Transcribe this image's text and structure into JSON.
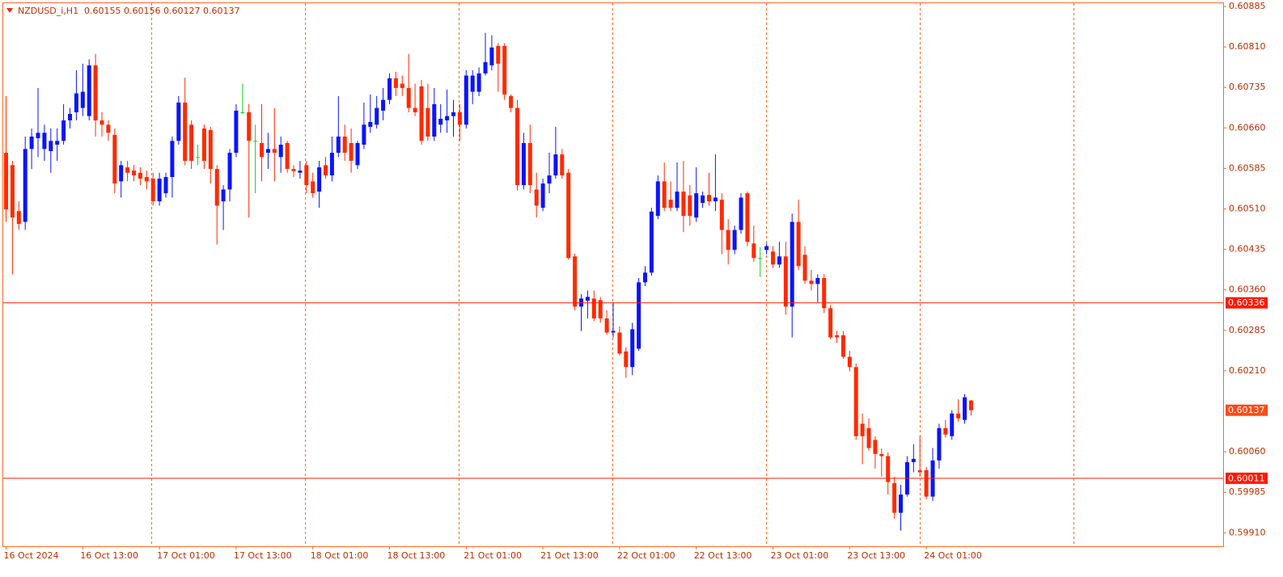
{
  "chart_data": {
    "type": "candlestick",
    "title": "NZDUSD_i,H1  0.60155 0.60156 0.60127 0.60137",
    "up_color": "#0a14ff",
    "down_color": "#ff2a00",
    "doji_color": "#22cc22",
    "ylim": [
      0.59885,
      0.60891
    ],
    "yticks": [
      0.60885,
      {
        "value": 0.6081,
        "label": "0.60810"
      },
      0.60735,
      {
        "value": 0.6066,
        "label": "0.60660"
      },
      0.60585,
      {
        "value": 0.6051,
        "label": "0.60510"
      },
      0.60435,
      {
        "value": 0.6036,
        "label": "0.60360"
      },
      0.60285,
      {
        "value": 0.6021,
        "label": "0.60210"
      },
      {
        "value": 0.6006,
        "label": "0.60060"
      },
      0.59985,
      {
        "value": 0.5991,
        "label": "0.59910"
      }
    ],
    "hlines": [
      {
        "value": 0.60336,
        "label": "0.60336",
        "color": "#ff1a00"
      },
      {
        "value": 0.60011,
        "label": "0.60011",
        "color": "#ff1a00"
      }
    ],
    "current_price": {
      "value": 0.60137,
      "label": "0.60137",
      "color": "#ff4a1a"
    },
    "categories": [
      "16 Oct 2024",
      null,
      null,
      null,
      null,
      null,
      null,
      null,
      null,
      null,
      null,
      null,
      "16 Oct 13:00",
      null,
      null,
      null,
      null,
      null,
      null,
      null,
      null,
      null,
      null,
      null,
      "17 Oct 01:00",
      null,
      null,
      null,
      null,
      null,
      null,
      null,
      null,
      null,
      null,
      null,
      "17 Oct 13:00",
      null,
      null,
      null,
      null,
      null,
      null,
      null,
      null,
      null,
      null,
      null,
      "18 Oct 01:00",
      null,
      null,
      null,
      null,
      null,
      null,
      null,
      null,
      null,
      null,
      null,
      "18 Oct 13:00",
      null,
      null,
      null,
      null,
      null,
      null,
      null,
      null,
      null,
      null,
      null,
      "21 Oct 01:00",
      null,
      null,
      null,
      null,
      null,
      null,
      null,
      null,
      null,
      null,
      null,
      "21 Oct 13:00",
      null,
      null,
      null,
      null,
      null,
      null,
      null,
      null,
      null,
      null,
      null,
      "22 Oct 01:00",
      null,
      null,
      null,
      null,
      null,
      null,
      null,
      null,
      null,
      null,
      null,
      "22 Oct 13:00",
      null,
      null,
      null,
      null,
      null,
      null,
      null,
      null,
      null,
      null,
      null,
      "23 Oct 01:00",
      null,
      null,
      null,
      null,
      null,
      null,
      null,
      null,
      null,
      null,
      null,
      "23 Oct 13:00",
      null,
      null,
      null,
      null,
      null,
      null,
      null,
      null,
      null,
      null,
      null,
      "24 Oct 01:00",
      null,
      null,
      null,
      null,
      null,
      null,
      null
    ],
    "open": [
      0.60614,
      0.60591,
      0.60506,
      0.60486,
      0.60621,
      0.60641,
      0.60621,
      0.60617,
      0.60629,
      0.60636,
      0.60674,
      0.60689,
      0.60697,
      0.60682,
      0.60776,
      0.60674,
      0.60666,
      0.60647,
      0.60561,
      0.60587,
      0.60581,
      0.60577,
      0.60569,
      0.60566,
      0.60524,
      0.60539,
      0.60569,
      0.60636,
      0.60707,
      0.60666,
      0.60606,
      0.60659,
      0.60656,
      0.60584,
      0.60524,
      0.60546,
      0.60614,
      0.60689,
      0.60689,
      0.60636,
      0.60632,
      0.60614,
      0.60621,
      0.60606,
      0.60632,
      0.60584,
      0.60577,
      0.60591,
      0.60561,
      0.60542,
      0.60591,
      0.60572,
      0.60614,
      0.60644,
      0.60632,
      0.60591,
      0.60629,
      0.60662,
      0.60666,
      0.60692,
      0.60712,
      0.60752,
      0.60742,
      0.60734,
      0.60697,
      0.60737,
      0.60697,
      0.60644,
      0.60666,
      0.60674,
      0.60682,
      0.60689,
      0.60666,
      0.60727,
      0.60727,
      0.60761,
      0.60776,
      0.60812,
      0.60812,
      0.60719,
      0.60697,
      0.60554,
      0.60632,
      0.60546,
      0.60512,
      0.60557,
      0.60572,
      0.60611,
      0.60577,
      0.60422,
      0.60329,
      0.6034,
      0.60344,
      0.60341,
      0.60307,
      0.60281,
      0.60281,
      0.60246,
      0.60217,
      0.60251,
      0.60374,
      0.60392,
      0.60497,
      0.60561,
      0.60527,
      0.60512,
      0.60542,
      0.60535,
      0.60494,
      0.60521,
      0.60536,
      0.60524,
      0.60527,
      0.60471,
      0.60434,
      0.60471,
      0.60539,
      0.60446,
      0.60419,
      0.60434,
      0.60431,
      0.60407,
      0.60422,
      0.60329,
      0.60486,
      0.60425,
      0.60377,
      0.60371,
      0.60382,
      0.60326,
      0.60276,
      0.60276,
      0.60236,
      0.60217,
      0.60112,
      0.60104,
      0.60082,
      0.60056,
      0.60052,
      0.60002,
      0.59947,
      0.59981,
      0.60041,
      0.60026,
      0.60026,
      0.59977,
      0.60044,
      0.60104,
      0.60089,
      0.60131,
      0.60119,
      0.60155
    ],
    "high": [
      0.60719,
      0.60599,
      0.60524,
      0.60644,
      0.60659,
      0.60734,
      0.60666,
      0.60659,
      0.60659,
      0.60704,
      0.60697,
      0.60767,
      0.60779,
      0.60787,
      0.60797,
      0.60689,
      0.60674,
      0.60659,
      0.60599,
      0.60599,
      0.60591,
      0.60587,
      0.60581,
      0.60577,
      0.60577,
      0.60577,
      0.60644,
      0.60719,
      0.60753,
      0.60674,
      0.60629,
      0.60666,
      0.60662,
      0.60591,
      0.60554,
      0.60621,
      0.60704,
      0.60742,
      0.60704,
      0.60666,
      0.60704,
      0.60651,
      0.60697,
      0.60644,
      0.60636,
      0.60591,
      0.60599,
      0.60599,
      0.60577,
      0.60599,
      0.60606,
      0.60644,
      0.60719,
      0.60666,
      0.60659,
      0.60636,
      0.60707,
      0.60722,
      0.60719,
      0.60734,
      0.60761,
      0.60764,
      0.60757,
      0.60797,
      0.60742,
      0.60749,
      0.60742,
      0.60734,
      0.60704,
      0.60731,
      0.60712,
      0.60704,
      0.60767,
      0.60767,
      0.60772,
      0.60836,
      0.60832,
      0.60817,
      0.60817,
      0.60722,
      0.60712,
      0.60651,
      0.60666,
      0.60577,
      0.60566,
      0.60614,
      0.60662,
      0.60621,
      0.60584,
      0.60427,
      0.60352,
      0.60359,
      0.60359,
      0.60347,
      0.60322,
      0.60337,
      0.60292,
      0.60254,
      0.60299,
      0.60382,
      0.60404,
      0.60512,
      0.60572,
      0.60596,
      0.60561,
      0.60596,
      0.60599,
      0.60554,
      0.60587,
      0.60542,
      0.60577,
      0.60611,
      0.60539,
      0.60491,
      0.60479,
      0.60539,
      0.60542,
      0.60479,
      0.60439,
      0.60446,
      0.60441,
      0.60449,
      0.60449,
      0.60501,
      0.60527,
      0.60441,
      0.60397,
      0.60389,
      0.60389,
      0.60332,
      0.60284,
      0.60284,
      0.60247,
      0.60224,
      0.60131,
      0.60122,
      0.60089,
      0.60066,
      0.60059,
      0.60014,
      0.59999,
      0.60052,
      0.60074,
      0.60089,
      0.60032,
      0.60067,
      0.60112,
      0.60119,
      0.60137,
      0.60157,
      0.60167,
      0.60156
    ],
    "low": [
      0.60486,
      0.60389,
      0.60471,
      0.60471,
      0.60584,
      0.60606,
      0.60599,
      0.60577,
      0.60599,
      0.60629,
      0.60659,
      0.60674,
      0.60682,
      0.60674,
      0.60644,
      0.60644,
      0.60636,
      0.60539,
      0.60531,
      0.60561,
      0.60561,
      0.60554,
      0.60546,
      0.60516,
      0.60516,
      0.60531,
      0.60531,
      0.60629,
      0.60591,
      0.60584,
      0.60591,
      0.60584,
      0.60557,
      0.60444,
      0.60471,
      0.60524,
      0.60606,
      0.60686,
      0.60494,
      0.60539,
      0.60561,
      0.60584,
      0.60561,
      0.60577,
      0.60577,
      0.60569,
      0.60566,
      0.60539,
      0.60531,
      0.60512,
      0.60566,
      0.60561,
      0.60606,
      0.60599,
      0.60577,
      0.60584,
      0.60621,
      0.60651,
      0.60659,
      0.60674,
      0.60704,
      0.60719,
      0.60719,
      0.60689,
      0.60682,
      0.60629,
      0.60636,
      0.60636,
      0.60651,
      0.60651,
      0.60644,
      0.60636,
      0.60659,
      0.60704,
      0.60719,
      0.60757,
      0.60767,
      0.60727,
      0.60712,
      0.60689,
      0.60544,
      0.60546,
      0.60539,
      0.60494,
      0.60506,
      0.60539,
      0.60566,
      0.60566,
      0.60416,
      0.60322,
      0.60284,
      0.60307,
      0.60302,
      0.60299,
      0.60277,
      0.60272,
      0.60239,
      0.60197,
      0.60202,
      0.60247,
      0.60367,
      0.60386,
      0.60491,
      0.60506,
      0.60506,
      0.60506,
      0.60467,
      0.60479,
      0.60486,
      0.60512,
      0.60516,
      0.60506,
      0.60426,
      0.60407,
      0.60426,
      0.60464,
      0.60441,
      0.60412,
      0.60384,
      0.60426,
      0.60401,
      0.60401,
      0.60314,
      0.60272,
      0.60397,
      0.60371,
      0.60359,
      0.60337,
      0.60317,
      0.60269,
      0.60262,
      0.60232,
      0.60209,
      0.60082,
      0.60037,
      0.60062,
      0.60029,
      0.60014,
      0.59981,
      0.59936,
      0.59914,
      0.59977,
      0.60022,
      0.60014,
      0.59972,
      0.59969,
      0.60029,
      0.60086,
      0.60082,
      0.60116,
      0.60112,
      0.60127
    ],
    "close": [
      0.60509,
      0.60494,
      0.60482,
      0.60621,
      0.60644,
      0.60651,
      0.60651,
      0.60636,
      0.60636,
      0.60674,
      0.60686,
      0.60724,
      0.60727,
      0.60776,
      0.60674,
      0.60666,
      0.60651,
      0.60557,
      0.60591,
      0.60577,
      0.60572,
      0.60566,
      0.60561,
      0.60524,
      0.60566,
      0.60569,
      0.60636,
      0.60707,
      0.60599,
      0.60599,
      0.60606,
      0.60599,
      0.60584,
      0.60516,
      0.60546,
      0.60614,
      0.60692,
      0.60689,
      0.60636,
      0.60636,
      0.60606,
      0.60621,
      0.60614,
      0.60629,
      0.60584,
      0.6058,
      0.60581,
      0.60554,
      0.60539,
      0.60587,
      0.60572,
      0.60614,
      0.60644,
      0.60614,
      0.60599,
      0.60632,
      0.60666,
      0.60671,
      0.60697,
      0.60712,
      0.60752,
      0.60734,
      0.60734,
      0.60697,
      0.60689,
      0.60636,
      0.60644,
      0.60704,
      0.60677,
      0.60682,
      0.60689,
      0.60666,
      0.60757,
      0.60757,
      0.60761,
      0.60782,
      0.60809,
      0.60779,
      0.60722,
      0.60697,
      0.60554,
      0.60632,
      0.60554,
      0.60516,
      0.60557,
      0.60572,
      0.60611,
      0.60572,
      0.60419,
      0.60329,
      0.60344,
      0.60347,
      0.60307,
      0.60307,
      0.60281,
      0.60284,
      0.60242,
      0.60217,
      0.60287,
      0.60374,
      0.60392,
      0.60505,
      0.60561,
      0.60512,
      0.60512,
      0.60542,
      0.60497,
      0.60497,
      0.60539,
      0.60535,
      0.60524,
      0.60531,
      0.60471,
      0.60434,
      0.60471,
      0.60531,
      0.60449,
      0.60419,
      0.60419,
      0.60441,
      0.60407,
      0.60422,
      0.60329,
      0.60486,
      0.60404,
      0.60377,
      0.60371,
      0.60382,
      0.60326,
      0.60272,
      0.60272,
      0.60236,
      0.60217,
      0.60089,
      0.60089,
      0.60067,
      0.60056,
      0.60052,
      0.60004,
      0.59947,
      0.59981,
      0.60041,
      0.60047,
      0.60022,
      0.59977,
      0.60044,
      0.60104,
      0.60092,
      0.60131,
      0.60122,
      0.60161,
      0.60137
    ]
  }
}
